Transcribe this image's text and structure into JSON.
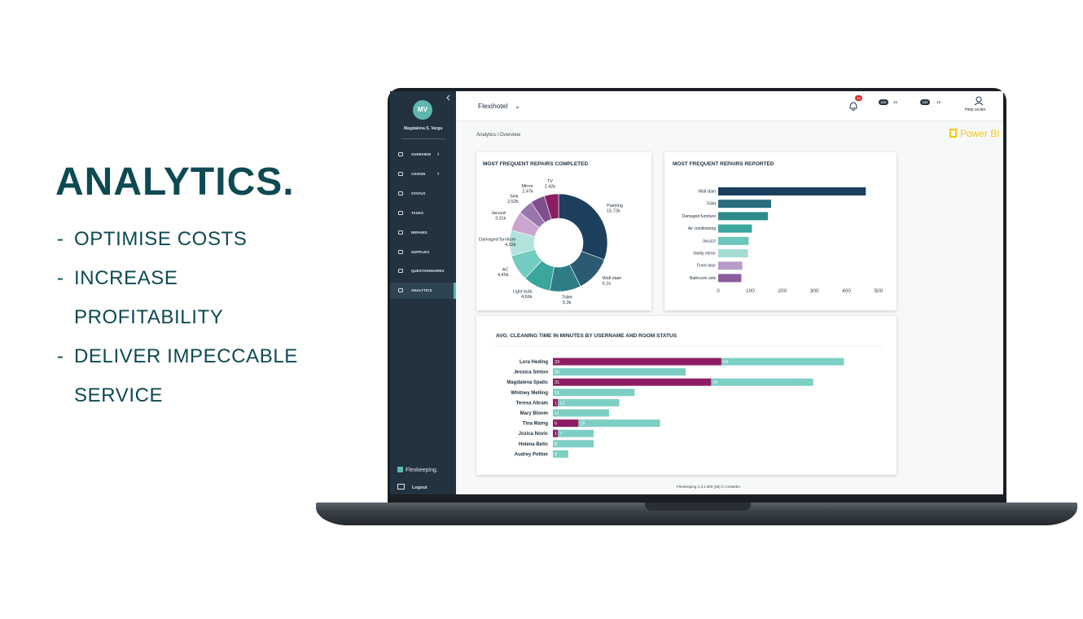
{
  "marketing": {
    "title": "ANALYTICS.",
    "bullet": "-",
    "points": [
      "OPTIMISE COSTS",
      "INCREASE PROFITABILITY",
      "DELIVER IMPECCABLE SERVICE"
    ]
  },
  "sidebar": {
    "avatar": "MV",
    "user": "Magdalena S. Varga",
    "nav": [
      "OVERVIEW",
      "ASSIGN",
      "STATUS",
      "TASKS",
      "REPAIRS",
      "SUPPLIES",
      "QUESTIONNAIRES",
      "ANALYTICS"
    ],
    "brand": "Flexkeeping.",
    "logout": "Logout"
  },
  "header": {
    "hotel": "Flexihotel",
    "bell_count": "15",
    "messages": [
      "150",
      "15"
    ],
    "tasks": [
      "150",
      "15"
    ],
    "help": "Help center"
  },
  "breadcrumb": "Analytics / Overview",
  "powerbi": "Power BI",
  "footer": "Flexkeeping 1.3.1.000 (35) © Createbo",
  "chart_data": [
    {
      "type": "donut",
      "title": "MOST FREQUENT REPAIRS COMPLETED",
      "categories": [
        "Painting",
        "Wall stain",
        "Toilet",
        "Light bulb",
        "AC",
        "Damaged furniture",
        "Jacuzzi",
        "Sink",
        "Mirror",
        "TV"
      ],
      "values": [
        15720,
        6100,
        5300,
        4660,
        4450,
        4320,
        3310,
        2520,
        2470,
        2420
      ],
      "value_labels": [
        "15,72k",
        "6,1k",
        "5,3k",
        "4,66k",
        "4,45k",
        "4,32k",
        "3,31k",
        "2,52k",
        "2,47k",
        "2,42k"
      ],
      "colors": [
        "#1d3f5e",
        "#2a5b72",
        "#2e7d86",
        "#3aa69e",
        "#72ccc0",
        "#b1e3dc",
        "#c9a6d0",
        "#9a76ae",
        "#7d4f8e",
        "#8e1c63"
      ]
    },
    {
      "type": "hbar",
      "title": "MOST FREQUENT REPAIRS REPORTED",
      "categories": [
        "Wall stain",
        "Toilet",
        "Damaged furniture",
        "Air conditioning",
        "Jacuzzi",
        "Vanity mirror",
        "Front door",
        "Bathroom sink"
      ],
      "values": [
        460,
        165,
        155,
        105,
        95,
        93,
        75,
        72
      ],
      "colors": [
        "#1d3f5e",
        "#2a6d7e",
        "#2e8a8c",
        "#3aa69e",
        "#6cc6bb",
        "#a5ddd5",
        "#b89cc8",
        "#8a5c9e"
      ],
      "xlim": [
        0,
        500
      ],
      "xticks": [
        0,
        100,
        200,
        300,
        400,
        500
      ]
    },
    {
      "type": "stacked-hbar",
      "title": "AVG. CLEANING TIME IN MINUTES BY USERNAME AND ROOM STATUS",
      "categories": [
        "Lora Heding",
        "Jessica Sinton",
        "Magdalena Spatic",
        "Whitney Melling",
        "Teresa Abram",
        "Mary Bloom",
        "Tina Maing",
        "Jozica Novic",
        "Helena Betic",
        "Audrey Pottier"
      ],
      "series": [
        {
          "color": "#8e1c63",
          "values": [
            33,
            null,
            31,
            null,
            1,
            null,
            5,
            1,
            null,
            null
          ]
        },
        {
          "color": "#7dcfc4",
          "values": [
            24,
            26,
            20,
            16,
            12,
            11,
            16,
            7,
            8,
            3
          ]
        }
      ]
    }
  ]
}
